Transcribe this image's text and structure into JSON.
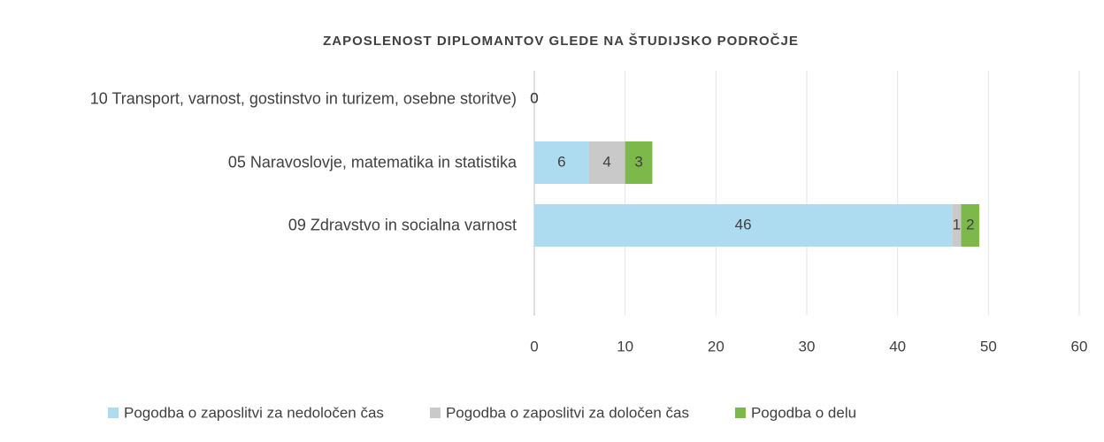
{
  "chart_data": {
    "type": "stacked_barh",
    "title": "ZAPOSLENOST DIPLOMANTOV GLEDE NA ŠTUDIJSKO PODROČJE",
    "categories": [
      "10 Transport, varnost, gostinstvo in turizem, osebne storitve)",
      "05 Naravoslovje, matematika in statistika",
      "09 Zdravstvo in socialna varnost"
    ],
    "series": [
      {
        "name": "Pogodba o zaposlitvi za nedoločen čas",
        "color": "#addcf0",
        "values": [
          0,
          6,
          46
        ]
      },
      {
        "name": "Pogodba o zaposlitvi za določen čas",
        "color": "#c9c9c9",
        "values": [
          0,
          4,
          1
        ]
      },
      {
        "name": "Pogodba o delu",
        "color": "#7db84a",
        "values": [
          0,
          3,
          2
        ]
      }
    ],
    "xlim": [
      0,
      60
    ],
    "xticks": [
      0,
      10,
      20,
      30,
      40,
      50,
      60
    ],
    "grid": true,
    "legend": "bottom"
  }
}
